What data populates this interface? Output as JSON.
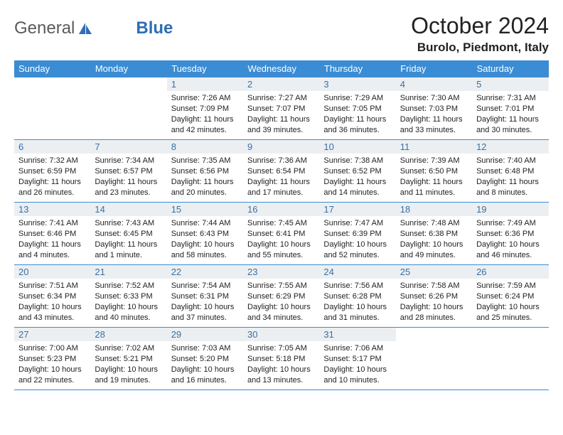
{
  "logo": {
    "textGray": "General",
    "textBlue": "Blue"
  },
  "title": "October 2024",
  "location": "Burolo, Piedmont, Italy",
  "colors": {
    "headerBg": "#3a8cd4",
    "dayBarBg": "#eceff1",
    "dayNumColor": "#3a6fa5",
    "borderColor": "#3a8cd4",
    "logoGray": "#5a5a5a",
    "logoBlue": "#2e6eb5"
  },
  "weekdays": [
    "Sunday",
    "Monday",
    "Tuesday",
    "Wednesday",
    "Thursday",
    "Friday",
    "Saturday"
  ],
  "weeks": [
    [
      null,
      null,
      {
        "n": "1",
        "sr": "7:26 AM",
        "ss": "7:09 PM",
        "dl": "11 hours and 42 minutes."
      },
      {
        "n": "2",
        "sr": "7:27 AM",
        "ss": "7:07 PM",
        "dl": "11 hours and 39 minutes."
      },
      {
        "n": "3",
        "sr": "7:29 AM",
        "ss": "7:05 PM",
        "dl": "11 hours and 36 minutes."
      },
      {
        "n": "4",
        "sr": "7:30 AM",
        "ss": "7:03 PM",
        "dl": "11 hours and 33 minutes."
      },
      {
        "n": "5",
        "sr": "7:31 AM",
        "ss": "7:01 PM",
        "dl": "11 hours and 30 minutes."
      }
    ],
    [
      {
        "n": "6",
        "sr": "7:32 AM",
        "ss": "6:59 PM",
        "dl": "11 hours and 26 minutes."
      },
      {
        "n": "7",
        "sr": "7:34 AM",
        "ss": "6:57 PM",
        "dl": "11 hours and 23 minutes."
      },
      {
        "n": "8",
        "sr": "7:35 AM",
        "ss": "6:56 PM",
        "dl": "11 hours and 20 minutes."
      },
      {
        "n": "9",
        "sr": "7:36 AM",
        "ss": "6:54 PM",
        "dl": "11 hours and 17 minutes."
      },
      {
        "n": "10",
        "sr": "7:38 AM",
        "ss": "6:52 PM",
        "dl": "11 hours and 14 minutes."
      },
      {
        "n": "11",
        "sr": "7:39 AM",
        "ss": "6:50 PM",
        "dl": "11 hours and 11 minutes."
      },
      {
        "n": "12",
        "sr": "7:40 AM",
        "ss": "6:48 PM",
        "dl": "11 hours and 8 minutes."
      }
    ],
    [
      {
        "n": "13",
        "sr": "7:41 AM",
        "ss": "6:46 PM",
        "dl": "11 hours and 4 minutes."
      },
      {
        "n": "14",
        "sr": "7:43 AM",
        "ss": "6:45 PM",
        "dl": "11 hours and 1 minute."
      },
      {
        "n": "15",
        "sr": "7:44 AM",
        "ss": "6:43 PM",
        "dl": "10 hours and 58 minutes."
      },
      {
        "n": "16",
        "sr": "7:45 AM",
        "ss": "6:41 PM",
        "dl": "10 hours and 55 minutes."
      },
      {
        "n": "17",
        "sr": "7:47 AM",
        "ss": "6:39 PM",
        "dl": "10 hours and 52 minutes."
      },
      {
        "n": "18",
        "sr": "7:48 AM",
        "ss": "6:38 PM",
        "dl": "10 hours and 49 minutes."
      },
      {
        "n": "19",
        "sr": "7:49 AM",
        "ss": "6:36 PM",
        "dl": "10 hours and 46 minutes."
      }
    ],
    [
      {
        "n": "20",
        "sr": "7:51 AM",
        "ss": "6:34 PM",
        "dl": "10 hours and 43 minutes."
      },
      {
        "n": "21",
        "sr": "7:52 AM",
        "ss": "6:33 PM",
        "dl": "10 hours and 40 minutes."
      },
      {
        "n": "22",
        "sr": "7:54 AM",
        "ss": "6:31 PM",
        "dl": "10 hours and 37 minutes."
      },
      {
        "n": "23",
        "sr": "7:55 AM",
        "ss": "6:29 PM",
        "dl": "10 hours and 34 minutes."
      },
      {
        "n": "24",
        "sr": "7:56 AM",
        "ss": "6:28 PM",
        "dl": "10 hours and 31 minutes."
      },
      {
        "n": "25",
        "sr": "7:58 AM",
        "ss": "6:26 PM",
        "dl": "10 hours and 28 minutes."
      },
      {
        "n": "26",
        "sr": "7:59 AM",
        "ss": "6:24 PM",
        "dl": "10 hours and 25 minutes."
      }
    ],
    [
      {
        "n": "27",
        "sr": "7:00 AM",
        "ss": "5:23 PM",
        "dl": "10 hours and 22 minutes."
      },
      {
        "n": "28",
        "sr": "7:02 AM",
        "ss": "5:21 PM",
        "dl": "10 hours and 19 minutes."
      },
      {
        "n": "29",
        "sr": "7:03 AM",
        "ss": "5:20 PM",
        "dl": "10 hours and 16 minutes."
      },
      {
        "n": "30",
        "sr": "7:05 AM",
        "ss": "5:18 PM",
        "dl": "10 hours and 13 minutes."
      },
      {
        "n": "31",
        "sr": "7:06 AM",
        "ss": "5:17 PM",
        "dl": "10 hours and 10 minutes."
      },
      null,
      null
    ]
  ],
  "labels": {
    "sunrise": "Sunrise:",
    "sunset": "Sunset:",
    "daylight": "Daylight:"
  }
}
